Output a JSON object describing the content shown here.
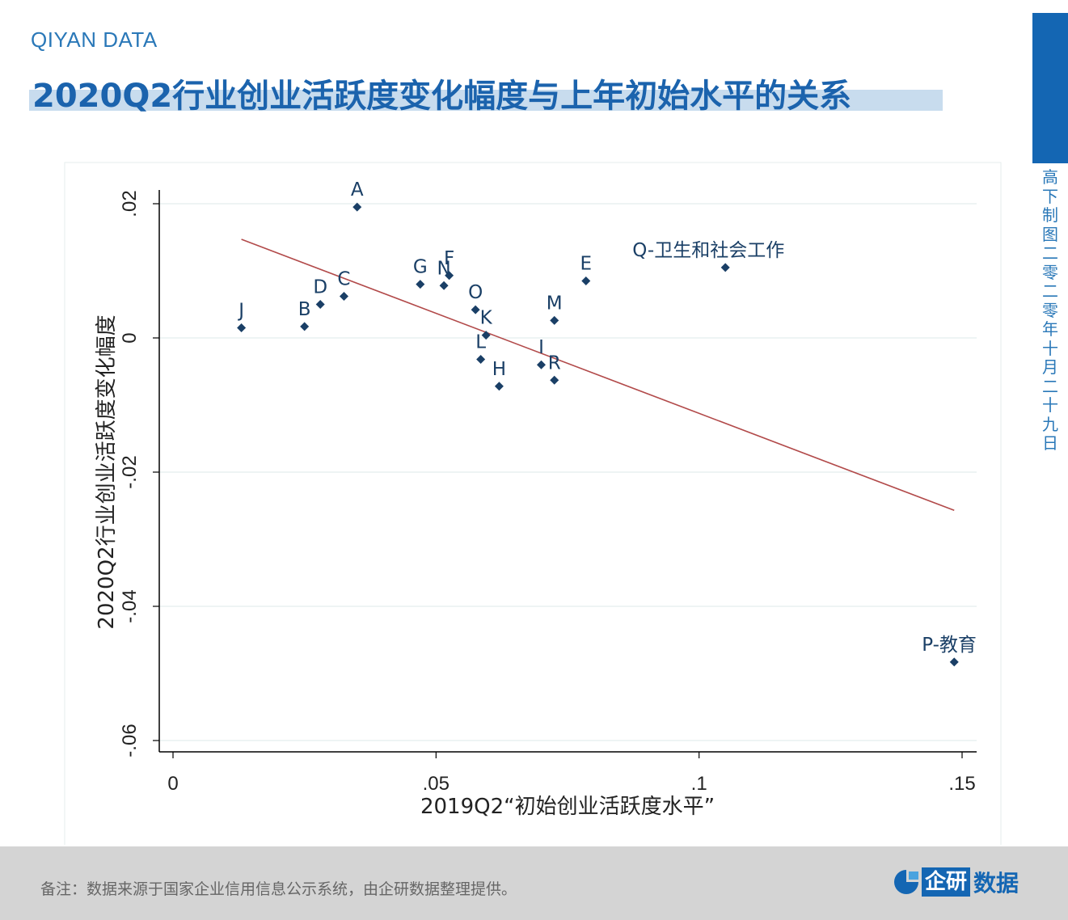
{
  "header": {
    "brand": "QIYAN DATA",
    "title": "2020Q2行业创业活跃度变化幅度与上年初始水平的关系"
  },
  "side": {
    "date_text": "高下制图　二零二零年十月二十九日"
  },
  "footer": {
    "note": "备注：数据来源于国家企业信用信息公示系统，由企研数据整理提供。",
    "logo_box": "企研",
    "logo_text": "数据"
  },
  "colors": {
    "brand_blue": "#1466b3",
    "marker": "#1a3f66",
    "fit_line": "#b24a4a",
    "grid": "#dce8e8"
  },
  "chart_data": {
    "type": "scatter",
    "title": "",
    "xlabel": "2019Q2“初始创业活跃度水平”",
    "ylabel": "2020Q2行业创业活跃度变化幅度",
    "xlim": [
      0,
      0.152
    ],
    "ylim": [
      -0.062,
      0.022
    ],
    "xticks": [
      0,
      0.05,
      0.1,
      0.15
    ],
    "xtick_labels": [
      "0",
      ".05",
      ".1",
      ".15"
    ],
    "yticks": [
      -0.06,
      -0.04,
      -0.02,
      0,
      0.02
    ],
    "ytick_labels": [
      "-.06",
      "-.04",
      "-.02",
      "0",
      ".02"
    ],
    "grid": "horizontal",
    "points": [
      {
        "label": "A",
        "x": 0.035,
        "y": 0.0195
      },
      {
        "label": "B",
        "x": 0.025,
        "y": 0.0017
      },
      {
        "label": "C",
        "x": 0.0325,
        "y": 0.0062
      },
      {
        "label": "D",
        "x": 0.028,
        "y": 0.005
      },
      {
        "label": "E",
        "x": 0.0785,
        "y": 0.0085
      },
      {
        "label": "F",
        "x": 0.0525,
        "y": 0.0093
      },
      {
        "label": "G",
        "x": 0.047,
        "y": 0.008
      },
      {
        "label": "H",
        "x": 0.062,
        "y": -0.0072
      },
      {
        "label": "I",
        "x": 0.07,
        "y": -0.004
      },
      {
        "label": "J",
        "x": 0.013,
        "y": 0.0015
      },
      {
        "label": "K",
        "x": 0.0595,
        "y": 0.0004
      },
      {
        "label": "L",
        "x": 0.0585,
        "y": -0.0032
      },
      {
        "label": "M",
        "x": 0.0725,
        "y": 0.0026
      },
      {
        "label": "N",
        "x": 0.0515,
        "y": 0.0078
      },
      {
        "label": "O",
        "x": 0.0575,
        "y": 0.0042
      },
      {
        "label": "P-教育",
        "x": 0.1485,
        "y": -0.0483
      },
      {
        "label": "Q-卫生和社会工作",
        "x": 0.105,
        "y": 0.0105
      },
      {
        "label": "R",
        "x": 0.0725,
        "y": -0.0063
      }
    ],
    "fit_line": {
      "x": [
        0.013,
        0.1485
      ],
      "y": [
        0.0147,
        -0.0257
      ]
    }
  }
}
